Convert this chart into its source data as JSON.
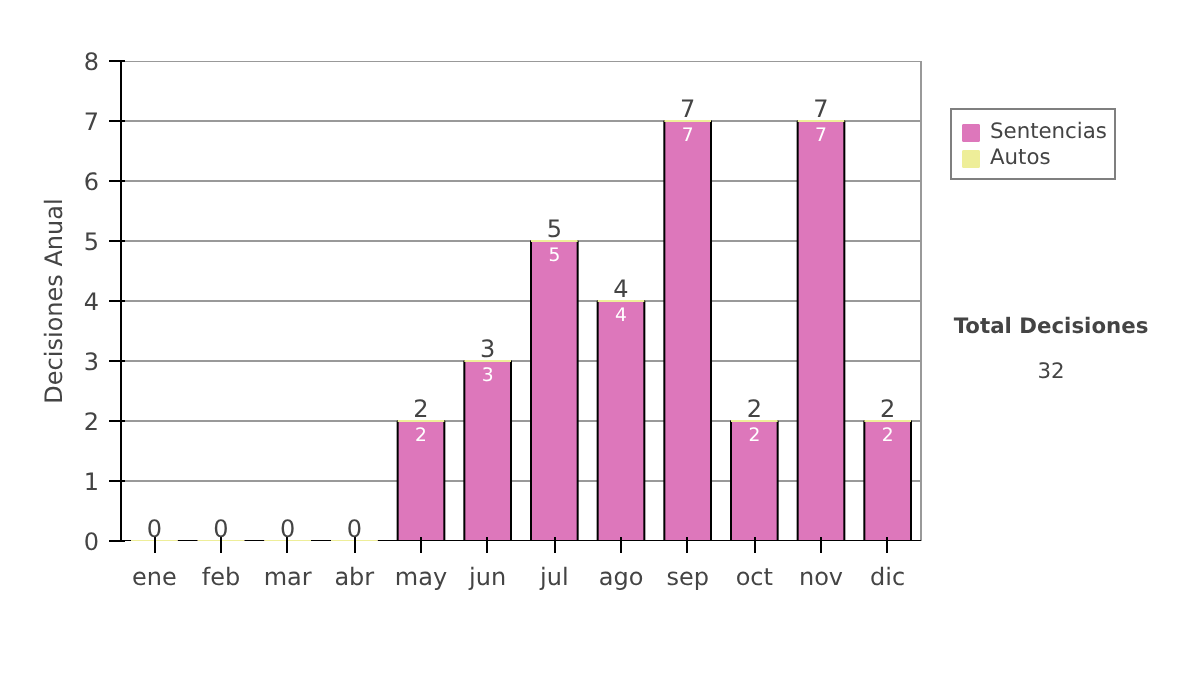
{
  "chart_data": {
    "type": "bar",
    "stacked": true,
    "ylabel": "Decisiones Anual",
    "categories": [
      "ene",
      "feb",
      "mar",
      "abr",
      "may",
      "jun",
      "jul",
      "ago",
      "sep",
      "oct",
      "nov",
      "dic"
    ],
    "series": [
      {
        "name": "Sentencias",
        "color": "#dd77bb",
        "values": [
          0,
          0,
          0,
          0,
          2,
          3,
          5,
          4,
          7,
          2,
          7,
          2
        ],
        "value_labels": [
          null,
          null,
          null,
          null,
          "2",
          "3",
          "5",
          "4",
          "7",
          "2",
          "7",
          "2"
        ]
      },
      {
        "name": "Autos",
        "color": "#eeee99",
        "values": [
          0,
          0,
          0,
          0,
          0,
          0,
          0,
          0,
          0,
          0,
          0,
          0
        ]
      }
    ],
    "totals": [
      "0",
      "0",
      "0",
      "0",
      "2",
      "3",
      "5",
      "4",
      "7",
      "2",
      "7",
      "2"
    ],
    "ylim": [
      0,
      8
    ],
    "yticks": [
      0,
      1,
      2,
      3,
      4,
      5,
      6,
      7,
      8
    ],
    "grid": "y",
    "legend": "right",
    "annotations": [
      "Total Decisiones",
      "32"
    ]
  }
}
